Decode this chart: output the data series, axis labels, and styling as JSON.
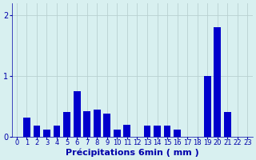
{
  "values": [
    0.0,
    0.32,
    0.18,
    0.12,
    0.18,
    0.4,
    0.75,
    0.42,
    0.45,
    0.38,
    0.12,
    0.2,
    0.0,
    0.18,
    0.18,
    0.18,
    0.12,
    0.0,
    0.0,
    1.0,
    1.8,
    0.4,
    0.0,
    0.0
  ],
  "xlabel": "Précipitations 6min ( mm )",
  "bar_color": "#0000cc",
  "bg_color": "#d8f0f0",
  "grid_color": "#b8d0d0",
  "axis_color": "#0000aa",
  "text_color": "#0000aa",
  "ylim": [
    0,
    2.2
  ],
  "yticks": [
    0,
    1,
    2
  ],
  "xlim": [
    -0.5,
    23.5
  ],
  "xlabel_fontsize": 8,
  "tick_fontsize": 6,
  "ytick_fontsize": 7
}
